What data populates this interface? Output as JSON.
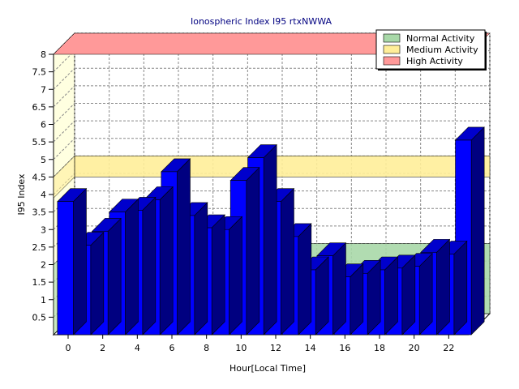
{
  "chart_data": {
    "type": "bar",
    "title": "Ionospheric Index I95 rtxNWWA",
    "xlabel": "Hour[Local Time]",
    "ylabel": "I95 Index",
    "ylim": [
      0,
      8
    ],
    "yticks": [
      "0.5",
      "1",
      "1.5",
      "2",
      "2.5",
      "3",
      "3.5",
      "4",
      "4.5",
      "5",
      "5.5",
      "6",
      "6.5",
      "7",
      "7.5",
      "8"
    ],
    "xticks": [
      "0",
      "2",
      "4",
      "6",
      "8",
      "10",
      "12",
      "14",
      "16",
      "18",
      "20",
      "22"
    ],
    "categories": [
      0,
      1,
      2,
      3,
      4,
      5,
      6,
      7,
      8,
      9,
      10,
      11,
      12,
      13,
      14,
      15,
      16,
      17,
      18,
      19,
      20,
      21,
      22,
      23
    ],
    "series": [
      {
        "values": [
          3.8,
          2.55,
          2.95,
          3.5,
          3.55,
          3.85,
          4.65,
          3.4,
          3.05,
          3.0,
          4.4,
          5.05,
          3.8,
          2.8,
          1.85,
          2.25,
          1.65,
          1.75,
          1.85,
          1.9,
          1.95,
          2.35,
          2.3,
          5.55
        ]
      }
    ],
    "bands": [
      {
        "name": "Normal Activity",
        "from": 0,
        "to": 2,
        "color": "#a8d8a8"
      },
      {
        "name": "Medium Activity",
        "from": 3.9,
        "to": 4.5,
        "color": "#ffee99"
      },
      {
        "name": "High Activity",
        "from": 8,
        "to": 8,
        "color": "#ff9999"
      }
    ],
    "legend_position": "top-right",
    "grid": true,
    "bar_color": "#0000ff"
  }
}
